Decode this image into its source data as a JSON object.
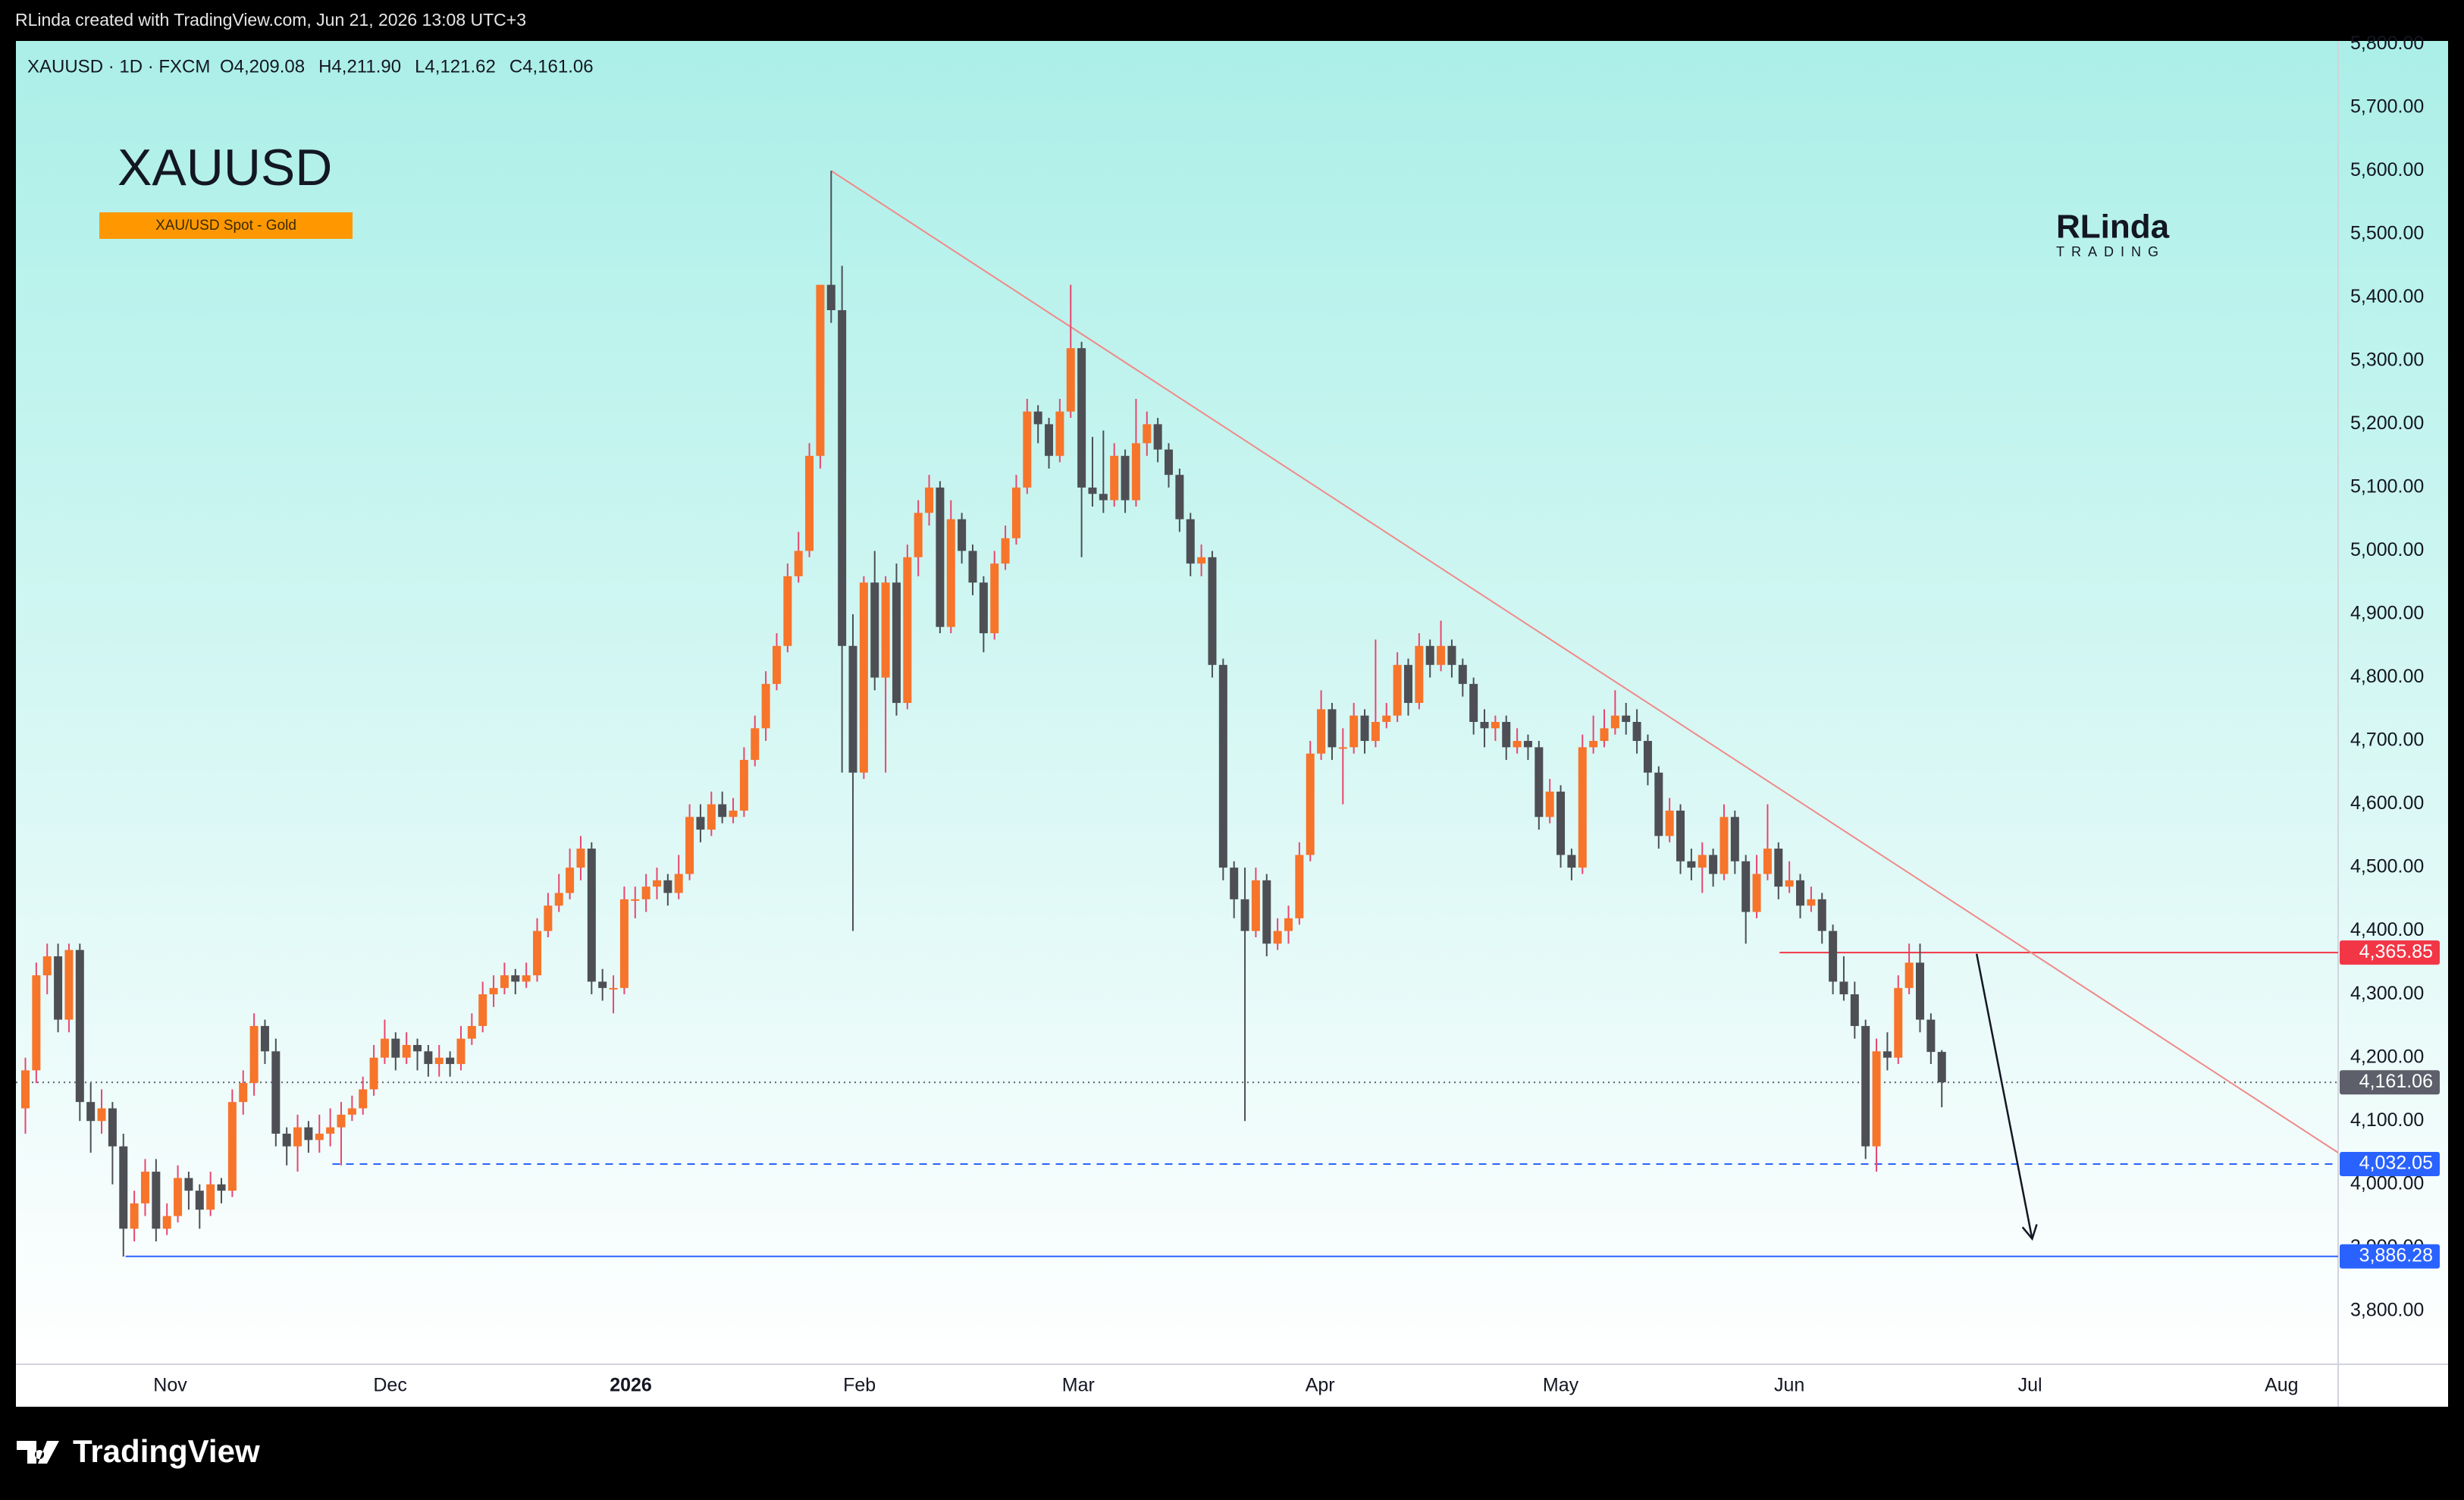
{
  "header": "RLinda created with TradingView.com, Jun 21, 2026 13:08 UTC+3",
  "watermark": {
    "main": "RLinda",
    "sub": "TRADING"
  },
  "footer": "TradingView",
  "chart_data": {
    "type": "candlestick",
    "title": "XAUUSD",
    "subtitle": "XAU/USD Spot - Gold",
    "symbol_line": "XAUUSD · 1D · FXCM",
    "ohlc_labels": [
      "O4,209.08",
      "H4,211.90",
      "L4,121.62",
      "C4,161.06"
    ],
    "xlim": [
      -0.87,
      212.4
    ],
    "ylim": [
      3716,
      5805
    ],
    "xticks": [
      {
        "value": 13.3,
        "label": "Nov"
      },
      {
        "value": 33.5,
        "label": "Dec"
      },
      {
        "value": 55.6,
        "label": "2026",
        "bold": true
      },
      {
        "value": 76.6,
        "label": "Feb"
      },
      {
        "value": 96.7,
        "label": "Mar"
      },
      {
        "value": 118.9,
        "label": "Apr"
      },
      {
        "value": 141,
        "label": "May"
      },
      {
        "value": 162,
        "label": "Jun"
      },
      {
        "value": 184.1,
        "label": "Jul"
      },
      {
        "value": 207.2,
        "label": "Aug"
      }
    ],
    "yticks": [
      {
        "value": 3800,
        "label": "3,800.00"
      },
      {
        "value": 3900,
        "label": "3,900.00"
      },
      {
        "value": 4000,
        "label": "4,000.00"
      },
      {
        "value": 4100,
        "label": "4,100.00"
      },
      {
        "value": 4200,
        "label": "4,200.00"
      },
      {
        "value": 4300,
        "label": "4,300.00"
      },
      {
        "value": 4400,
        "label": "4,400.00"
      },
      {
        "value": 4500,
        "label": "4,500.00"
      },
      {
        "value": 4600,
        "label": "4,600.00"
      },
      {
        "value": 4700,
        "label": "4,700.00"
      },
      {
        "value": 4800,
        "label": "4,800.00"
      },
      {
        "value": 4900,
        "label": "4,900.00"
      },
      {
        "value": 5000,
        "label": "5,000.00"
      },
      {
        "value": 5100,
        "label": "5,100.00"
      },
      {
        "value": 5200,
        "label": "5,200.00"
      },
      {
        "value": 5300,
        "label": "5,300.00"
      },
      {
        "value": 5400,
        "label": "5,400.00"
      },
      {
        "value": 5500,
        "label": "5,500.00"
      },
      {
        "value": 5600,
        "label": "5,600.00"
      },
      {
        "value": 5700,
        "label": "5,700.00"
      },
      {
        "value": 5800,
        "label": "5,800.00"
      }
    ],
    "up_color": "#f7742b",
    "down_color": "#4d4f54",
    "up_wick_color": "#e8466e",
    "down_wick_color": "#4d4f54",
    "open": [
      4120,
      4180,
      4330,
      4360,
      4260,
      4370,
      4130,
      4100,
      4120,
      4060,
      3930,
      3970,
      4020,
      3930,
      3950,
      4010,
      3990,
      3960,
      4000,
      3990,
      4130,
      4160,
      4250,
      4210,
      4080,
      4060,
      4090,
      4070,
      4080,
      4090,
      4110,
      4120,
      4150,
      4200,
      4230,
      4200,
      4220,
      4210,
      4190,
      4200,
      4190,
      4230,
      4250,
      4300,
      4310,
      4330,
      4320,
      4330,
      4400,
      4440,
      4460,
      4500,
      4530,
      4320,
      4310,
      4310,
      4450,
      4450,
      4470,
      4480,
      4460,
      4490,
      4580,
      4560,
      4600,
      4580,
      4590,
      4670,
      4720,
      4790,
      4850,
      4960,
      5000,
      5150,
      5420,
      5380,
      4850,
      4650,
      4950,
      4800,
      4950,
      4760,
      4990,
      5060,
      5100,
      4880,
      5050,
      5000,
      4950,
      4870,
      4980,
      5020,
      5100,
      5220,
      5200,
      5150,
      5220,
      5320,
      5100,
      5090,
      5080,
      5150,
      5080,
      5170,
      5200,
      5160,
      5120,
      5050,
      4980,
      4990,
      4820,
      4500,
      4450,
      4400,
      4480,
      4380,
      4400,
      4420,
      4520,
      4680,
      4750,
      4690,
      4690,
      4740,
      4700,
      4730,
      4740,
      4820,
      4760,
      4850,
      4820,
      4850,
      4820,
      4790,
      4730,
      4720,
      4730,
      4690,
      4700,
      4690,
      4580,
      4620,
      4520,
      4500,
      4690,
      4700,
      4720,
      4740,
      4730,
      4700,
      4650,
      4550,
      4590,
      4510,
      4500,
      4520,
      4490,
      4580,
      4510,
      4430,
      4490,
      4530,
      4470,
      4480,
      4440,
      4450,
      4400,
      4320,
      4300,
      4250,
      4060,
      4210,
      4200,
      4310,
      4350,
      4260,
      4209.08
    ],
    "high": [
      4200,
      4350,
      4380,
      4380,
      4380,
      4380,
      4160,
      4150,
      4130,
      4080,
      3990,
      4040,
      4040,
      3970,
      4030,
      4020,
      4000,
      4020,
      4010,
      4150,
      4180,
      4270,
      4260,
      4230,
      4090,
      4110,
      4100,
      4110,
      4120,
      4130,
      4140,
      4170,
      4220,
      4260,
      4240,
      4240,
      4230,
      4220,
      4220,
      4210,
      4250,
      4270,
      4320,
      4330,
      4350,
      4340,
      4350,
      4420,
      4460,
      4490,
      4530,
      4550,
      4540,
      4340,
      4330,
      4470,
      4470,
      4490,
      4500,
      4490,
      4520,
      4600,
      4600,
      4620,
      4620,
      4610,
      4690,
      4740,
      4810,
      4870,
      4980,
      5030,
      5170,
      5420,
      5600,
      5450,
      4900,
      4960,
      5000,
      4960,
      4980,
      5010,
      5080,
      5120,
      5110,
      5080,
      5060,
      5010,
      4960,
      5000,
      5040,
      5120,
      5240,
      5230,
      5210,
      5240,
      5420,
      5330,
      5180,
      5190,
      5170,
      5160,
      5240,
      5220,
      5210,
      5170,
      5130,
      5060,
      5010,
      5000,
      4830,
      4510,
      4500,
      4500,
      4490,
      4420,
      4440,
      4540,
      4700,
      4780,
      4760,
      4720,
      4760,
      4750,
      4860,
      4760,
      4840,
      4830,
      4870,
      4860,
      4890,
      4860,
      4830,
      4800,
      4750,
      4740,
      4740,
      4720,
      4710,
      4700,
      4640,
      4630,
      4530,
      4710,
      4740,
      4750,
      4780,
      4760,
      4750,
      4710,
      4660,
      4610,
      4600,
      4530,
      4540,
      4530,
      4600,
      4590,
      4520,
      4520,
      4600,
      4540,
      4510,
      4490,
      4470,
      4460,
      4410,
      4360,
      4320,
      4260,
      4230,
      4240,
      4330,
      4380,
      4380,
      4270,
      4211.9
    ],
    "low": [
      4080,
      4160,
      4300,
      4240,
      4240,
      4100,
      4050,
      4080,
      4000,
      3886,
      3910,
      3950,
      3910,
      3920,
      3940,
      3960,
      3930,
      3950,
      3970,
      3980,
      4110,
      4140,
      4190,
      4060,
      4030,
      4020,
      4050,
      4050,
      4060,
      4030,
      4100,
      4110,
      4140,
      4190,
      4180,
      4190,
      4180,
      4170,
      4170,
      4170,
      4180,
      4220,
      4240,
      4280,
      4300,
      4300,
      4310,
      4320,
      4390,
      4430,
      4450,
      4480,
      4300,
      4290,
      4270,
      4300,
      4420,
      4430,
      4450,
      4440,
      4450,
      4480,
      4540,
      4550,
      4570,
      4570,
      4580,
      4660,
      4700,
      4780,
      4840,
      4950,
      4990,
      5130,
      5360,
      4650,
      4400,
      4640,
      4780,
      4650,
      4740,
      4750,
      4960,
      5040,
      4870,
      4870,
      4980,
      4930,
      4840,
      4860,
      4970,
      5010,
      5090,
      5170,
      5130,
      5140,
      5210,
      4990,
      5070,
      5060,
      5070,
      5060,
      5070,
      5150,
      5140,
      5100,
      5030,
      4960,
      4960,
      4800,
      4480,
      4420,
      4100,
      4390,
      4360,
      4370,
      4380,
      4410,
      4510,
      4670,
      4670,
      4600,
      4680,
      4680,
      4690,
      4720,
      4730,
      4740,
      4750,
      4800,
      4810,
      4800,
      4770,
      4710,
      4690,
      4700,
      4670,
      4680,
      4670,
      4560,
      4570,
      4500,
      4480,
      4490,
      4680,
      4690,
      4710,
      4710,
      4680,
      4630,
      4530,
      4540,
      4490,
      4480,
      4460,
      4470,
      4480,
      4490,
      4380,
      4420,
      4480,
      4450,
      4460,
      4420,
      4430,
      4380,
      4300,
      4290,
      4230,
      4040,
      4020,
      4180,
      4190,
      4300,
      4240,
      4190,
      4121.62
    ],
    "close": [
      4180,
      4330,
      4360,
      4260,
      4370,
      4130,
      4100,
      4120,
      4060,
      3930,
      3970,
      4020,
      3930,
      3950,
      4010,
      3990,
      3960,
      4000,
      3990,
      4130,
      4160,
      4250,
      4210,
      4080,
      4060,
      4090,
      4070,
      4080,
      4090,
      4110,
      4120,
      4150,
      4200,
      4230,
      4200,
      4220,
      4210,
      4190,
      4200,
      4190,
      4230,
      4250,
      4300,
      4310,
      4330,
      4320,
      4330,
      4400,
      4440,
      4460,
      4500,
      4530,
      4320,
      4310,
      4310,
      4450,
      4450,
      4470,
      4480,
      4460,
      4490,
      4580,
      4560,
      4600,
      4580,
      4590,
      4670,
      4720,
      4790,
      4850,
      4960,
      5000,
      5150,
      5420,
      5380,
      4850,
      4650,
      4950,
      4800,
      4950,
      4760,
      4990,
      5060,
      5100,
      4880,
      5050,
      5000,
      4950,
      4870,
      4980,
      5020,
      5100,
      5220,
      5200,
      5150,
      5220,
      5320,
      5100,
      5090,
      5080,
      5150,
      5080,
      5170,
      5200,
      5160,
      5120,
      5050,
      4980,
      4990,
      4820,
      4500,
      4450,
      4400,
      4480,
      4380,
      4400,
      4420,
      4520,
      4680,
      4750,
      4690,
      4690,
      4740,
      4700,
      4730,
      4740,
      4820,
      4760,
      4850,
      4820,
      4850,
      4820,
      4790,
      4730,
      4720,
      4730,
      4690,
      4700,
      4690,
      4580,
      4620,
      4520,
      4500,
      4690,
      4700,
      4720,
      4740,
      4730,
      4700,
      4650,
      4550,
      4590,
      4510,
      4500,
      4520,
      4490,
      4580,
      4510,
      4430,
      4490,
      4530,
      4470,
      4480,
      4440,
      4450,
      4400,
      4320,
      4300,
      4250,
      4060,
      4210,
      4200,
      4310,
      4350,
      4260,
      4209.08,
      4161.06
    ],
    "price_lines": [
      {
        "value": 4365.85,
        "label": "4,365.85",
        "color": "#f23645",
        "style": "solid",
        "start": 161.1
      },
      {
        "value": 4161.06,
        "label": "4,161.06",
        "color": "#5d606b",
        "style": "dotted",
        "start": -0.87
      },
      {
        "value": 4032.05,
        "label": "4,032.05",
        "color": "#2962ff",
        "style": "dashed",
        "start": 28.2
      },
      {
        "value": 3886.28,
        "label": "3,886.28",
        "color": "#2962ff",
        "style": "solid",
        "start": 9.2
      }
    ],
    "trendline": {
      "x": [
        74,
        212.4
      ],
      "y": [
        5600,
        4050
      ],
      "color": "#f08a8a"
    },
    "arrow": {
      "x": [
        179.2,
        184.3
      ],
      "y": [
        4364,
        3914
      ],
      "color": "#131722"
    }
  }
}
